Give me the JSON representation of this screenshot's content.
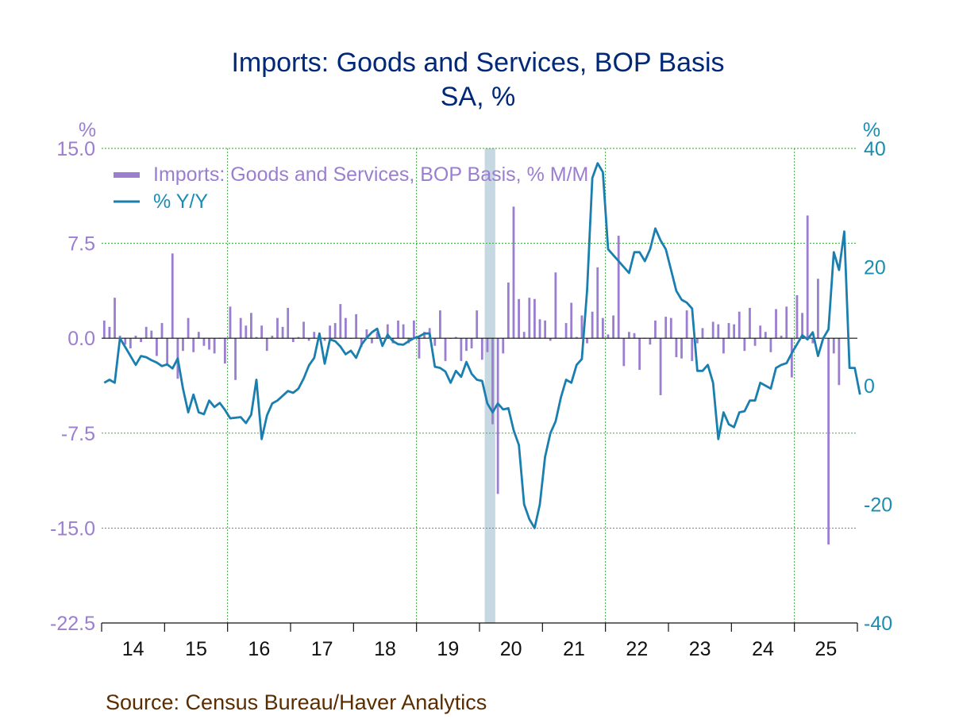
{
  "chart_data": {
    "type": "bar+line",
    "title": "Imports: Goods and Services, BOP Basis",
    "subtitle": "SA, %",
    "left_axis": {
      "unit": "%",
      "ylim": [
        -22.5,
        15.0
      ],
      "ticks": [
        "15.0",
        "7.5",
        "0.0",
        "-7.5",
        "-15.0",
        "-22.5"
      ]
    },
    "right_axis": {
      "unit": "%",
      "ylim": [
        -40,
        40
      ],
      "ticks": [
        "40",
        "20",
        "0",
        "-20",
        "-40"
      ]
    },
    "x_ticks": [
      "14",
      "15",
      "16",
      "17",
      "18",
      "19",
      "20",
      "21",
      "22",
      "23",
      "24",
      "25"
    ],
    "start_year": 2014,
    "grid": "dotted vertical lines at each year's start, dotted horizontal lines at left-axis ticks",
    "recession": {
      "start": 2020.083,
      "end": 2020.25
    },
    "legend_position": "top-left",
    "series": [
      {
        "name": "Imports: Goods and Services, BOP Basis, % M/M",
        "type": "bar",
        "axis": "left",
        "color": "#9b7ed0",
        "values": [
          1.4,
          0.9,
          3.2,
          0.2,
          -0.5,
          -0.8,
          0.2,
          -0.3,
          0.9,
          0.6,
          -1.4,
          1.2,
          -2.0,
          6.7,
          -3.2,
          -1.0,
          1.6,
          -1.1,
          0.5,
          -0.6,
          -0.9,
          -1.2,
          0.0,
          -2.0,
          2.5,
          -3.3,
          1.6,
          1.0,
          2.0,
          0.1,
          1.0,
          -1.0,
          0.2,
          1.6,
          0.9,
          2.4,
          -0.3,
          0.1,
          1.3,
          -0.2,
          0.5,
          0.3,
          -0.2,
          1.0,
          1.2,
          2.7,
          1.6,
          0.0,
          1.9,
          -0.7,
          0.7,
          -0.4,
          0.5,
          0.0,
          1.1,
          -0.4,
          1.4,
          1.1,
          -0.4,
          1.4,
          -1.6,
          0.5,
          0.8,
          -0.6,
          2.2,
          -1.8,
          0.0,
          0.1,
          -1.8,
          -1.0,
          -0.8,
          2.2,
          -1.7,
          -1.1,
          -6.8,
          -12.3,
          -1.2,
          4.4,
          10.4,
          3.1,
          0.5,
          3.2,
          3.1,
          1.5,
          1.4,
          -0.2,
          5.2,
          0.0,
          1.2,
          2.8,
          0.1,
          1.8,
          -0.4,
          2.1,
          5.6,
          1.6,
          0.3,
          1.8,
          8.1,
          -2.2,
          0.5,
          0.4,
          -2.5,
          0.0,
          -0.5,
          1.4,
          -4.5,
          1.7,
          1.6,
          -1.5,
          -1.6,
          2.2,
          -1.8,
          -0.4,
          0.8,
          0.0,
          1.3,
          1.1,
          -1.2,
          1.2,
          1.1,
          2.1,
          -1.0,
          2.4,
          -0.6,
          1.0,
          0.5,
          -1.1,
          2.3,
          0.2,
          2.5,
          -3.1,
          3.4,
          2.0,
          9.7,
          -0.4,
          4.7,
          0.0,
          -16.3,
          -1.2,
          -3.7
        ]
      },
      {
        "name": "% Y/Y",
        "type": "line",
        "axis": "right",
        "color": "#1a7fae",
        "values": [
          0.5,
          1.0,
          0.5,
          8.0,
          6.5,
          5.0,
          3.5,
          5.0,
          4.8,
          4.3,
          3.9,
          3.3,
          3.6,
          2.9,
          4.6,
          -0.5,
          -4.5,
          -1.5,
          -4.5,
          -4.8,
          -2.5,
          -3.6,
          -2.9,
          -4.1,
          -5.5,
          -5.4,
          -5.3,
          -6.3,
          -4.9,
          1.0,
          -9.0,
          -5.0,
          -3.0,
          -2.5,
          -1.7,
          -0.9,
          -1.2,
          -0.5,
          1.2,
          3.4,
          4.7,
          8.8,
          3.7,
          7.8,
          7.5,
          6.6,
          5.3,
          5.9,
          4.7,
          6.9,
          8.1,
          9.0,
          9.6,
          6.7,
          8.6,
          7.5,
          7.0,
          6.9,
          7.5,
          8.0,
          8.3,
          8.8,
          8.8,
          3.2,
          3.0,
          2.4,
          0.5,
          2.5,
          1.5,
          4.0,
          2.0,
          1.0,
          0.8,
          -3.0,
          -4.5,
          -3.0,
          -4.0,
          -3.8,
          -7.5,
          -10.0,
          -20.0,
          -22.5,
          -24.0,
          -20.0,
          -12.0,
          -8.0,
          -6.0,
          -2.0,
          1.0,
          0.5,
          3.5,
          4.5,
          16.0,
          35.0,
          37.5,
          36.0,
          23.0,
          22.0,
          21.0,
          20.0,
          19.0,
          22.5,
          22.5,
          21.0,
          23.0,
          26.5,
          24.5,
          23.0,
          19.5,
          16.0,
          14.5,
          14.0,
          13.0,
          2.5,
          2.5,
          3.5,
          0.5,
          -9.0,
          -4.5,
          -6.5,
          -7.0,
          -4.5,
          -4.3,
          -2.5,
          -2.5,
          0.5,
          0.0,
          -0.5,
          3.0,
          3.5,
          3.8,
          5.5,
          7.0,
          8.5,
          7.8,
          9.0,
          5.0,
          8.0,
          9.5,
          22.5,
          19.5,
          26.0,
          3.0,
          3.0,
          -1.5
        ]
      }
    ],
    "source": "Source:  Census Bureau/Haver Analytics"
  }
}
